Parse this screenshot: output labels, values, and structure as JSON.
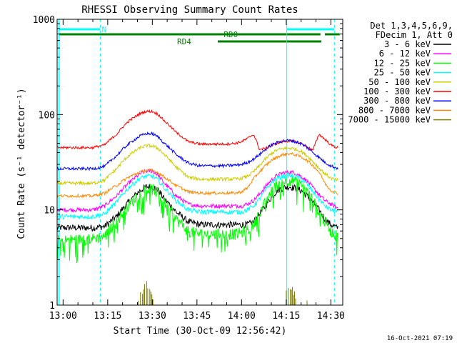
{
  "chart_data": {
    "type": "line",
    "title": "RHESSI Observing Summary Count Rates",
    "xlabel": "Start Time (30-Oct-09 12:56:42)",
    "ylabel": "Count Rate (s⁻¹ detector⁻¹)",
    "yscale": "log",
    "ylim": [
      1,
      1000
    ],
    "xlim_minutes": [
      -2,
      40
    ],
    "x_ticks": [
      {
        "label": "13:00",
        "min": 0
      },
      {
        "label": "13:15",
        "min": 15
      },
      {
        "label": "13:30",
        "min": 30
      },
      {
        "label": "13:45",
        "min": 45
      },
      {
        "label": "14:00",
        "min": 60
      },
      {
        "label": "14:15",
        "min": 75
      },
      {
        "label": "14:30",
        "min": 90
      }
    ],
    "y_ticks": [
      {
        "label": "1",
        "value": 1
      },
      {
        "label": "10",
        "value": 10
      },
      {
        "label": "100",
        "value": 100
      },
      {
        "label": "1000",
        "value": 1000
      }
    ],
    "legend": {
      "placement": "right",
      "header": [
        "Det 1,3,4,5,6,9,",
        "FDecim 1, Att 0"
      ]
    },
    "series": [
      {
        "name": "3 - 6 keV",
        "color": "#000000",
        "x_min": [
          -2,
          0,
          10,
          14,
          18,
          22,
          26,
          28,
          30,
          32,
          34,
          38,
          42,
          46,
          50,
          54,
          58,
          60,
          62,
          64,
          66,
          68,
          70,
          72,
          74,
          76,
          78,
          80,
          82,
          84,
          86,
          88,
          90,
          92
        ],
        "y": [
          6.5,
          6.5,
          6.5,
          6.7,
          8.5,
          12,
          16,
          17.5,
          17.5,
          16,
          13,
          9.5,
          7.5,
          7,
          7,
          7,
          7,
          7,
          7,
          7.5,
          9,
          11,
          13.5,
          16,
          17,
          17.5,
          17,
          16,
          14,
          12,
          10,
          8,
          7,
          6.5
        ]
      },
      {
        "name": "6 - 12 keV",
        "color": "#ff00ff",
        "x_min": [
          -2,
          0,
          10,
          14,
          18,
          22,
          26,
          28,
          30,
          32,
          34,
          38,
          42,
          46,
          50,
          54,
          58,
          60,
          62,
          64,
          66,
          68,
          70,
          72,
          74,
          76,
          78,
          80,
          82,
          84,
          86,
          88,
          90,
          92
        ],
        "y": [
          10,
          10,
          10,
          11,
          14,
          19,
          24,
          25.5,
          25.5,
          23,
          19,
          14,
          11.5,
          11,
          11,
          11,
          11,
          11,
          11.5,
          12.5,
          14.5,
          17.5,
          20.5,
          23,
          24.5,
          25,
          24.5,
          22.5,
          20,
          17,
          14.5,
          12.5,
          11.5,
          10.5
        ]
      },
      {
        "name": "12 - 25 keV",
        "color": "#00ff00",
        "x_min": [
          -2,
          0,
          10,
          14,
          18,
          22,
          26,
          28,
          30,
          32,
          34,
          38,
          42,
          46,
          50,
          54,
          58,
          60,
          62,
          64,
          66,
          68,
          70,
          72,
          74,
          76,
          78,
          80,
          82,
          84,
          86,
          88,
          90,
          92
        ],
        "y": [
          4.8,
          4.8,
          5,
          5.3,
          7.5,
          11,
          15,
          16.5,
          16.5,
          15,
          12,
          8,
          6,
          5.6,
          5.6,
          5.6,
          5.6,
          5.8,
          6.2,
          7,
          9,
          12,
          15.5,
          18.5,
          20,
          20.5,
          20,
          18,
          15.5,
          12.5,
          9.5,
          7.5,
          6,
          5.5
        ]
      },
      {
        "name": "25 - 50 keV",
        "color": "#00ffff",
        "x_min": [
          -2,
          0,
          10,
          14,
          18,
          22,
          26,
          28,
          30,
          32,
          34,
          38,
          42,
          46,
          50,
          54,
          58,
          60,
          62,
          64,
          66,
          68,
          70,
          72,
          74,
          76,
          78,
          80,
          82,
          84,
          86,
          88,
          90,
          92
        ],
        "y": [
          8.5,
          8.5,
          8.5,
          9,
          12,
          17,
          21.5,
          22.5,
          22.5,
          20.5,
          17,
          12.5,
          10,
          9.5,
          9.5,
          9.5,
          9.5,
          9.5,
          10,
          11,
          13,
          16,
          19,
          21.5,
          22.5,
          23,
          22.5,
          21,
          18.5,
          15.5,
          13,
          11,
          10,
          9.5
        ]
      },
      {
        "name": "50 - 100 keV",
        "color": "#cccc00",
        "x_min": [
          -2,
          0,
          10,
          14,
          18,
          22,
          26,
          28,
          30,
          32,
          34,
          38,
          42,
          46,
          50,
          54,
          58,
          60,
          62,
          64,
          66,
          68,
          70,
          72,
          74,
          76,
          78,
          80,
          82,
          84,
          86,
          88,
          90,
          92
        ],
        "y": [
          19,
          19,
          19,
          20.5,
          27,
          37,
          45,
          47,
          47,
          44,
          38,
          28,
          22,
          21,
          21,
          21,
          21,
          21.5,
          22.5,
          25,
          29,
          34,
          39,
          42.5,
          44,
          44.5,
          43.5,
          41,
          37,
          32,
          27.5,
          24,
          21.5,
          20.5
        ]
      },
      {
        "name": "100 - 300 keV",
        "color": "#ff0000",
        "x_min": [
          -2,
          0,
          10,
          14,
          18,
          22,
          26,
          28,
          30,
          32,
          34,
          38,
          42,
          46,
          50,
          54,
          58,
          60,
          62,
          64,
          66,
          68,
          70,
          72,
          74,
          76,
          78,
          80,
          82,
          84,
          86,
          88,
          90,
          92
        ],
        "y": [
          45,
          45,
          45,
          48,
          62,
          85,
          103,
          108,
          108,
          100,
          86,
          65,
          52,
          49,
          49,
          49,
          50,
          52,
          56,
          62,
          43,
          44,
          47,
          50,
          52,
          53,
          52,
          50,
          46,
          42,
          62,
          55,
          48,
          45
        ]
      },
      {
        "name": "300 - 800 keV",
        "color": "#0000ff",
        "x_min": [
          -2,
          0,
          10,
          14,
          18,
          22,
          26,
          28,
          30,
          32,
          34,
          38,
          42,
          46,
          50,
          54,
          58,
          60,
          62,
          64,
          66,
          68,
          70,
          72,
          74,
          76,
          78,
          80,
          82,
          84,
          86,
          88,
          90,
          92
        ],
        "y": [
          27,
          27,
          27,
          28.5,
          37,
          49,
          60,
          63,
          63,
          58,
          50,
          38,
          31,
          29,
          29,
          29,
          29.5,
          30,
          31.5,
          34,
          38,
          43,
          48,
          51,
          53,
          53.5,
          52,
          49.5,
          45,
          40,
          35.5,
          31.5,
          29,
          27.5
        ]
      },
      {
        "name": "800 - 7000 keV",
        "color": "#ff8800",
        "x_min": [
          -2,
          0,
          10,
          14,
          18,
          22,
          26,
          28,
          30,
          32,
          34,
          38,
          42,
          46,
          50,
          54,
          58,
          60,
          62,
          64,
          66,
          68,
          70,
          72,
          74,
          76,
          78,
          80,
          82,
          84,
          86,
          88,
          90,
          92
        ],
        "y": [
          14,
          14,
          14,
          15,
          18,
          22,
          25,
          26,
          26,
          24.5,
          22,
          18,
          15.5,
          15,
          15,
          15,
          15,
          15.5,
          17,
          21,
          25,
          29,
          33,
          36,
          38,
          39,
          38,
          36,
          33,
          29,
          25,
          19,
          16,
          15
        ]
      },
      {
        "name": "7000 - 15000 keV",
        "color": "#808000",
        "x_min": [
          -2,
          0,
          10,
          14,
          18,
          22,
          26,
          28,
          30,
          32,
          34,
          38,
          42,
          46,
          50,
          54,
          58,
          60,
          62,
          64,
          66,
          68,
          70,
          72,
          74,
          76,
          78,
          80,
          82,
          84,
          86,
          88,
          90,
          92
        ],
        "y": [
          0,
          0,
          0,
          0,
          0,
          0,
          1.4,
          1.9,
          1.3,
          0,
          0,
          0,
          0,
          0,
          0,
          0,
          0,
          0,
          0,
          0,
          0,
          0,
          0,
          0,
          1.3,
          1.9,
          1.4,
          0,
          1.2,
          0,
          0,
          0,
          0,
          0
        ]
      }
    ],
    "vertical_lines_min": {
      "solid": [
        -1.4,
        75.2
      ],
      "dashed": [
        12.5,
        91.2
      ]
    },
    "flag_bars": [
      {
        "color": "#00ffff",
        "segments": [
          [
            -1.4,
            12.5
          ]
        ],
        "label": "N",
        "label_at_min": 13.0,
        "level": "top"
      },
      {
        "color": "#00ffff",
        "segments": [
          [
            75.2,
            91.2
          ]
        ],
        "label": "",
        "level": "top"
      },
      {
        "color": "#008000",
        "segments": [
          [
            -1.4,
            86.5
          ],
          [
            88,
            93
          ]
        ],
        "label": "RD0",
        "label_at_min": 54.0,
        "level": "upper"
      },
      {
        "color": "#008000",
        "segments": [
          [
            52,
            86.8
          ]
        ],
        "label": "RD4",
        "label_at_min": 45.0,
        "level": "lower"
      }
    ],
    "footer_timestamp": "16-Oct-2021 07:19"
  }
}
